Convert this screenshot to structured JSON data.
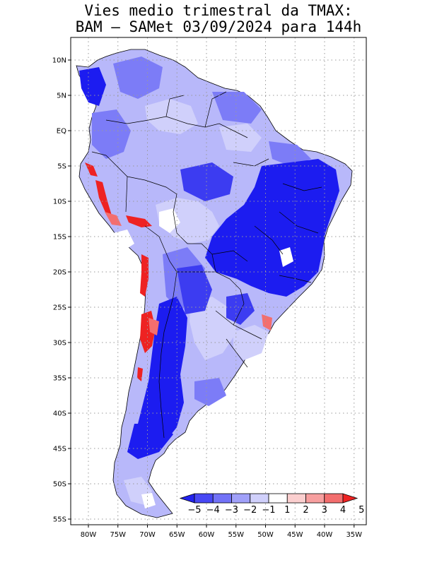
{
  "title": {
    "line1": "Vies medio trimestral da TMAX:",
    "line2": "BAM – SAMet 03/09/2024  para 144h"
  },
  "axes": {
    "lat_labels": [
      "10N",
      "5N",
      "EQ",
      "5S",
      "10S",
      "15S",
      "20S",
      "25S",
      "30S",
      "35S",
      "40S",
      "45S",
      "50S",
      "55S"
    ],
    "lon_labels": [
      "80W",
      "75W",
      "70W",
      "65W",
      "60W",
      "55W",
      "50W",
      "45W",
      "40W",
      "35W"
    ],
    "lat_range": [
      12,
      -56
    ],
    "lon_range": [
      -83,
      -35
    ]
  },
  "legend": {
    "labels": [
      "−5",
      "−4",
      "−3",
      "−2",
      "−1",
      "1",
      "2",
      "3",
      "4",
      "5"
    ],
    "colors": [
      "#2222ee",
      "#4848f4",
      "#7272f7",
      "#a0a0f9",
      "#d0d0fb",
      "#ffffff",
      "#fbcfcf",
      "#f79f9f",
      "#f36e6e",
      "#ee2222"
    ]
  },
  "field_colors": {
    "strong_cold": "#1c1cf0",
    "cold": "#3a3aef",
    "moderate_cold": "#6a6af6",
    "light_cold": "#9c9cf8",
    "slight_cold": "#c8c8fb",
    "neutral": "#ffffff",
    "warm": "#ee2222"
  }
}
